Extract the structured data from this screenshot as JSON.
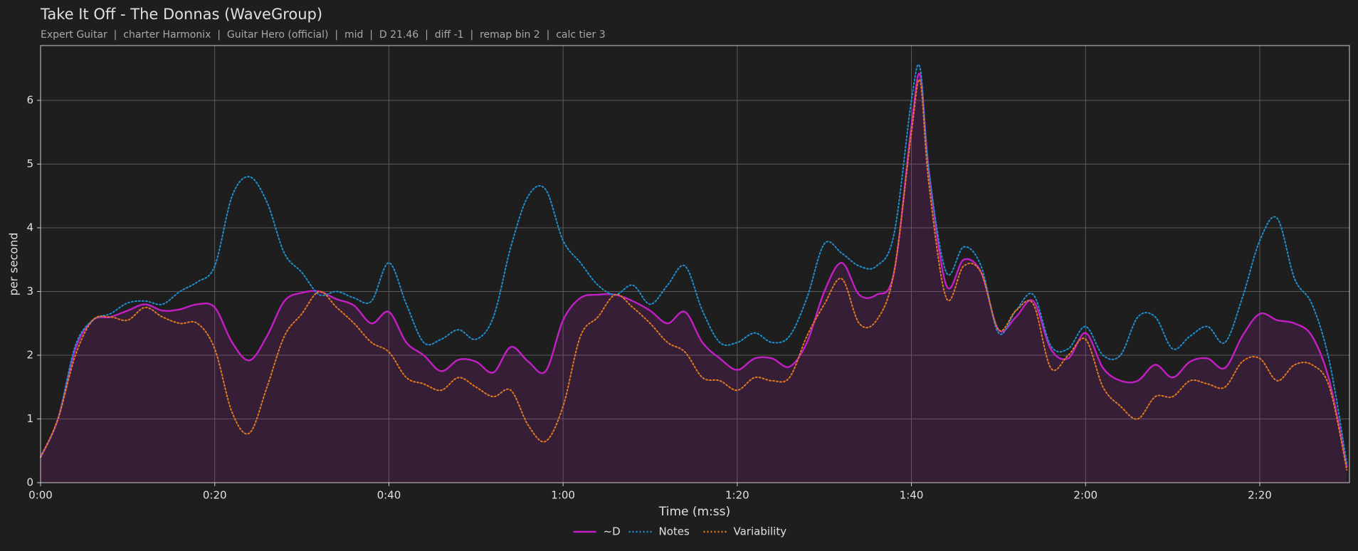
{
  "chart_data": {
    "type": "line",
    "title": "Take It Off - The Donnas (WaveGroup)",
    "subtitle": "Expert Guitar  |  charter Harmonix  |  Guitar Hero (official)  |  mid  |  D 21.46  |  diff -1  |  remap bin 2  |  calc tier 3",
    "x_label": "Time (m:ss)",
    "y_label": "per second",
    "x": [
      0,
      2,
      4,
      6,
      8,
      10,
      12,
      14,
      16,
      18,
      20,
      22,
      24,
      26,
      28,
      30,
      32,
      34,
      36,
      38,
      40,
      42,
      44,
      46,
      48,
      50,
      52,
      54,
      56,
      58,
      60,
      62,
      64,
      66,
      68,
      70,
      72,
      74,
      76,
      78,
      80,
      82,
      84,
      86,
      88,
      90,
      92,
      94,
      96,
      98,
      100,
      101,
      102,
      104,
      106,
      108,
      110,
      112,
      114,
      116,
      118,
      120,
      122,
      124,
      126,
      128,
      130,
      132,
      134,
      136,
      138,
      140,
      142,
      144,
      146,
      148,
      150
    ],
    "series": [
      {
        "name": "~D",
        "color": "#c21fc4",
        "linestyle": "solid",
        "fill": true,
        "values": [
          0.4,
          1.0,
          2.1,
          2.55,
          2.6,
          2.7,
          2.8,
          2.7,
          2.72,
          2.8,
          2.75,
          2.2,
          1.92,
          2.3,
          2.85,
          2.98,
          3.0,
          2.88,
          2.78,
          2.5,
          2.68,
          2.2,
          2.0,
          1.75,
          1.93,
          1.9,
          1.73,
          2.13,
          1.9,
          1.75,
          2.55,
          2.9,
          2.95,
          2.95,
          2.85,
          2.7,
          2.5,
          2.68,
          2.2,
          1.95,
          1.77,
          1.95,
          1.95,
          1.82,
          2.2,
          3.0,
          3.45,
          2.95,
          2.95,
          3.3,
          5.6,
          6.4,
          4.9,
          3.1,
          3.5,
          3.3,
          2.4,
          2.6,
          2.85,
          2.1,
          1.95,
          2.35,
          1.8,
          1.6,
          1.6,
          1.85,
          1.65,
          1.9,
          1.95,
          1.8,
          2.3,
          2.65,
          2.55,
          2.5,
          2.3,
          1.6,
          0.25
        ]
      },
      {
        "name": "Notes",
        "color": "#1f8fd0",
        "linestyle": "dotted",
        "values": [
          0.4,
          1.0,
          2.15,
          2.55,
          2.65,
          2.82,
          2.85,
          2.8,
          3.0,
          3.15,
          3.4,
          4.5,
          4.8,
          4.4,
          3.6,
          3.3,
          2.95,
          3.0,
          2.9,
          2.85,
          3.45,
          2.8,
          2.2,
          2.25,
          2.4,
          2.25,
          2.6,
          3.7,
          4.5,
          4.6,
          3.8,
          3.45,
          3.1,
          2.95,
          3.1,
          2.8,
          3.1,
          3.4,
          2.7,
          2.2,
          2.2,
          2.35,
          2.2,
          2.3,
          2.9,
          3.75,
          3.6,
          3.4,
          3.4,
          3.9,
          6.0,
          6.5,
          4.9,
          3.3,
          3.7,
          3.4,
          2.35,
          2.7,
          2.95,
          2.15,
          2.1,
          2.45,
          2.0,
          2.0,
          2.6,
          2.6,
          2.1,
          2.3,
          2.45,
          2.2,
          2.9,
          3.8,
          4.15,
          3.2,
          2.8,
          1.9,
          0.3
        ]
      },
      {
        "name": "Variability",
        "color": "#e07a20",
        "linestyle": "dotted",
        "values": [
          0.4,
          1.0,
          2.0,
          2.55,
          2.6,
          2.55,
          2.75,
          2.6,
          2.5,
          2.5,
          2.1,
          1.1,
          0.78,
          1.5,
          2.3,
          2.65,
          3.0,
          2.75,
          2.5,
          2.2,
          2.05,
          1.65,
          1.55,
          1.45,
          1.65,
          1.5,
          1.35,
          1.45,
          0.9,
          0.65,
          1.2,
          2.3,
          2.6,
          2.95,
          2.75,
          2.5,
          2.2,
          2.05,
          1.65,
          1.6,
          1.45,
          1.65,
          1.6,
          1.65,
          2.3,
          2.8,
          3.2,
          2.5,
          2.55,
          3.3,
          5.5,
          6.3,
          4.7,
          2.9,
          3.4,
          3.3,
          2.4,
          2.7,
          2.8,
          1.8,
          2.0,
          2.25,
          1.5,
          1.2,
          1.0,
          1.35,
          1.35,
          1.6,
          1.55,
          1.5,
          1.9,
          1.95,
          1.6,
          1.85,
          1.85,
          1.5,
          0.2
        ]
      }
    ],
    "xlim": [
      0,
      150.3
    ],
    "ylim": [
      0,
      6.86
    ],
    "xticks": [
      {
        "value": 0,
        "label": "0:00"
      },
      {
        "value": 20,
        "label": "0:20"
      },
      {
        "value": 40,
        "label": "0:40"
      },
      {
        "value": 60,
        "label": "1:00"
      },
      {
        "value": 80,
        "label": "1:20"
      },
      {
        "value": 100,
        "label": "1:40"
      },
      {
        "value": 120,
        "label": "2:00"
      },
      {
        "value": 140,
        "label": "2:20"
      }
    ],
    "yticks": [
      0,
      1,
      2,
      3,
      4,
      5,
      6
    ],
    "grid": true,
    "legend": "bottom"
  }
}
